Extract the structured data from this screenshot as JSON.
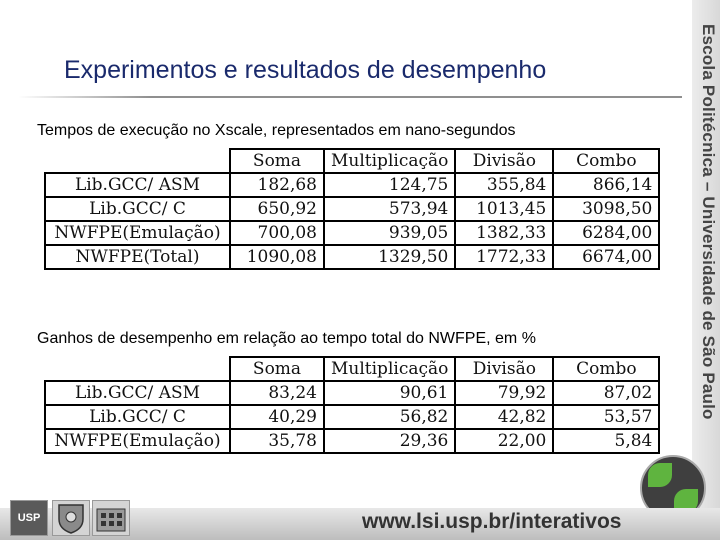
{
  "title": "Experimentos e resultados de desempenho",
  "sidebar_text": "Escola Politécnica – Universidade de São Paulo",
  "footer_url": "www.lsi.usp.br/interativos",
  "logo_text": "USP",
  "table1": {
    "caption": "Tempos de execução no Xscale, representados em nano-segundos",
    "headers": [
      "Soma",
      "Multiplicação",
      "Divisão",
      "Combo"
    ],
    "rows": [
      {
        "label": "Lib.GCC/ ASM",
        "values": [
          "182,68",
          "124,75",
          "355,84",
          "866,14"
        ]
      },
      {
        "label": "Lib.GCC/ C",
        "values": [
          "650,92",
          "573,94",
          "1013,45",
          "3098,50"
        ]
      },
      {
        "label": "NWFPE(Emulação)",
        "values": [
          "700,08",
          "939,05",
          "1382,33",
          "6284,00"
        ]
      },
      {
        "label": "NWFPE(Total)",
        "values": [
          "1090,08",
          "1329,50",
          "1772,33",
          "6674,00"
        ]
      }
    ]
  },
  "table2": {
    "caption": "Ganhos de desempenho em relação ao tempo total do NWFPE, em %",
    "headers": [
      "Soma",
      "Multiplicação",
      "Divisão",
      "Combo"
    ],
    "rows": [
      {
        "label": "Lib.GCC/ ASM",
        "values": [
          "83,24",
          "90,61",
          "79,92",
          "87,02"
        ]
      },
      {
        "label": "Lib.GCC/ C",
        "values": [
          "40,29",
          "56,82",
          "42,82",
          "53,57"
        ]
      },
      {
        "label": "NWFPE(Emulação)",
        "values": [
          "35,78",
          "29,36",
          "22,00",
          "5,84"
        ]
      }
    ]
  },
  "colors": {
    "title": "#1a2a6c",
    "accent_green": "#5fb43f"
  }
}
